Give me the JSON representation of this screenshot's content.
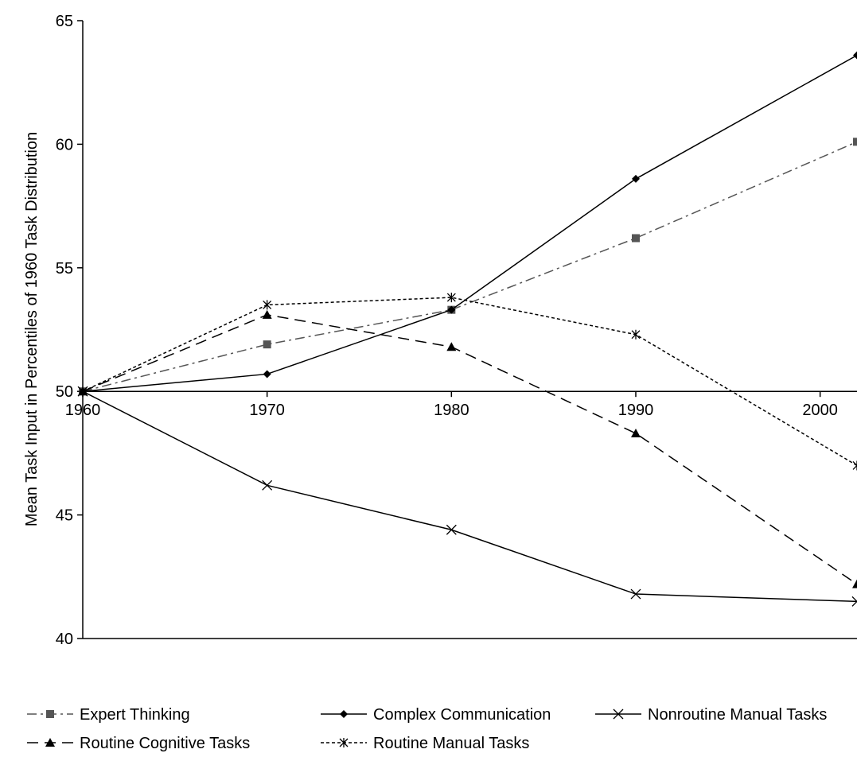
{
  "chart_data": {
    "type": "line",
    "title": "",
    "ylabel": "Mean Task  Input in Percentiles of 1960 Task  Distribution",
    "xlabel": "",
    "x": [
      "1960",
      "1970",
      "1980",
      "1990",
      "2000"
    ],
    "x_values": [
      1960,
      1970,
      1980,
      1990,
      2000
    ],
    "xlim": [
      1960,
      2002
    ],
    "ylim": [
      40,
      65
    ],
    "yticks": [
      "40",
      "45",
      "50",
      "55",
      "60",
      "65"
    ],
    "ytick_values": [
      40,
      45,
      50,
      55,
      60,
      65
    ],
    "x_axis_crosses_at": 50,
    "grid": false,
    "legend_position": "bottom",
    "series": [
      {
        "name": "Expert Thinking",
        "color": "#555555",
        "marker": "square",
        "dash": "dash-dot",
        "x": [
          1960,
          1970,
          1980,
          1990,
          2002
        ],
        "values": [
          50.0,
          51.9,
          53.3,
          56.2,
          60.1
        ]
      },
      {
        "name": "Complex Communication",
        "color": "#000000",
        "marker": "diamond",
        "dash": "solid",
        "x": [
          1960,
          1970,
          1980,
          1990,
          2002
        ],
        "values": [
          50.0,
          50.7,
          53.3,
          58.6,
          63.6
        ]
      },
      {
        "name": "Nonroutine Manual Tasks",
        "color": "#000000",
        "marker": "x",
        "dash": "solid",
        "x": [
          1960,
          1970,
          1980,
          1990,
          2002
        ],
        "values": [
          50.0,
          46.2,
          44.4,
          41.8,
          41.5
        ]
      },
      {
        "name": "Routine Cognitive Tasks",
        "color": "#000000",
        "marker": "triangle",
        "dash": "long-dash",
        "x": [
          1960,
          1970,
          1980,
          1990,
          2002
        ],
        "values": [
          50.0,
          53.1,
          51.8,
          48.3,
          42.2
        ]
      },
      {
        "name": "Routine Manual Tasks",
        "color": "#000000",
        "marker": "star",
        "dash": "short-dash",
        "x": [
          1960,
          1970,
          1980,
          1990,
          2002
        ],
        "values": [
          50.0,
          53.5,
          53.8,
          52.3,
          47.0
        ]
      }
    ]
  }
}
